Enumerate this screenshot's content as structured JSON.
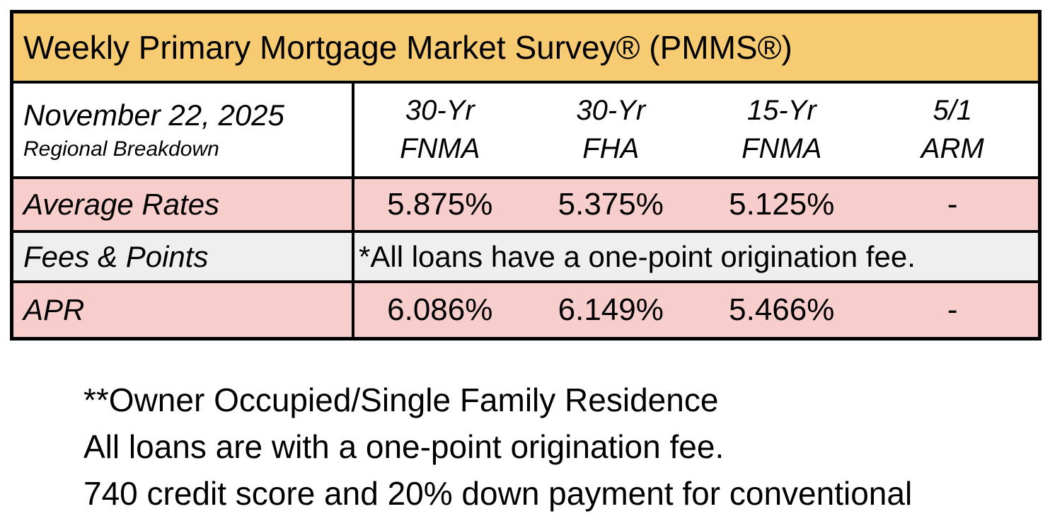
{
  "table": {
    "title": "Weekly Primary Mortgage Market Survey® (PMMS®)",
    "date": "November 22, 2025",
    "subtitle": "Regional Breakdown",
    "columns": [
      {
        "term": "30-Yr",
        "program": "FNMA"
      },
      {
        "term": "30-Yr",
        "program": "FHA"
      },
      {
        "term": "15-Yr",
        "program": "FNMA"
      },
      {
        "term": "5/1",
        "program": "ARM"
      }
    ],
    "rows": {
      "average_rates": {
        "label": "Average Rates",
        "values": [
          "5.875%",
          "5.375%",
          "5.125%",
          "-"
        ]
      },
      "fees_points": {
        "label": "Fees & Points",
        "note": "*All loans have a one-point origination fee."
      },
      "apr": {
        "label": "APR",
        "values": [
          "6.086%",
          "6.149%",
          "5.466%",
          "-"
        ]
      }
    },
    "colors": {
      "header_bg": "#F6CB72",
      "rate_row_bg": "#F8CECC",
      "fees_row_bg": "#EFEFEF",
      "border": "#000000"
    }
  },
  "footnotes": {
    "line1": "**Owner Occupied/Single Family Residence",
    "line2": "All loans are with a one-point origination fee.",
    "line3": "740 credit score and 20% down payment for conventional"
  }
}
